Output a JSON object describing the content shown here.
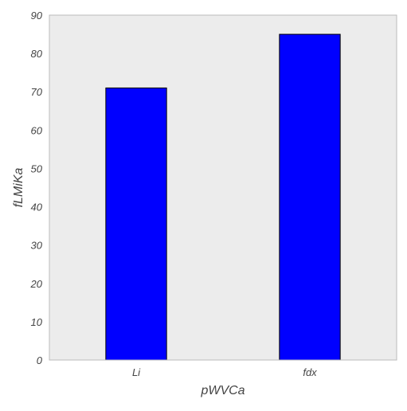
{
  "chart_data": {
    "type": "bar",
    "categories": [
      "Li",
      "fdx"
    ],
    "values": [
      71,
      85
    ],
    "xlabel": "pWVCa",
    "ylabel": "fLMiKa",
    "ylim": [
      0,
      90
    ],
    "yticks": [
      0,
      10,
      20,
      30,
      40,
      50,
      60,
      70,
      80,
      90
    ],
    "grid": false,
    "colors": {
      "bar": "#0000ff",
      "bar_edge": "#000000",
      "plot_background": "#ececec",
      "frame": "#bbbbbb"
    }
  }
}
